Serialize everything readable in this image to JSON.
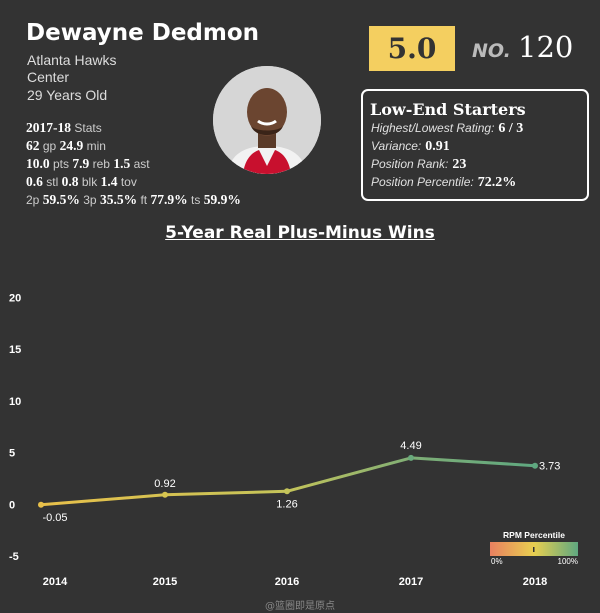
{
  "player": {
    "name": "Dewayne Dedmon",
    "team": "Atlanta Hawks",
    "position": "Center",
    "age": "29 Years Old"
  },
  "season_stats": {
    "season": "2017-18",
    "season_label": "Stats",
    "gp": "62",
    "gp_label": "gp",
    "min": "24.9",
    "min_label": "min",
    "pts": "10.0",
    "pts_label": "pts",
    "reb": "7.9",
    "reb_label": "reb",
    "ast": "1.5",
    "ast_label": "ast",
    "stl": "0.6",
    "stl_label": "stl",
    "blk": "0.8",
    "blk_label": "blk",
    "tov": "1.4",
    "tov_label": "tov",
    "fg2": "59.5%",
    "fg2_label": "2p",
    "fg3": "35.5%",
    "fg3_label": "3p",
    "ft": "77.9%",
    "ft_label": "ft",
    "ts": "59.9%",
    "ts_label": "ts"
  },
  "rating": {
    "value": "5.0",
    "rank_label": "NO.",
    "rank": "120",
    "rating_color": "#f4cf60"
  },
  "tier": {
    "title": "Low-End Starters",
    "highest_lowest_label": "Highest/Lowest Rating:",
    "highest_lowest_value": "6 / 3",
    "variance_label": "Variance:",
    "variance_value": "0.91",
    "position_rank_label": "Position Rank:",
    "position_rank_value": "23",
    "position_percentile_label": "Position Percentile:",
    "position_percentile_value": "72.2%"
  },
  "chart_data": {
    "type": "line",
    "title": "5-Year Real Plus-Minus Wins",
    "x": [
      "2014",
      "2015",
      "2016",
      "2017",
      "2018"
    ],
    "series": [
      {
        "values": [
          -0.05,
          0.92,
          1.26,
          4.49,
          3.73
        ]
      }
    ],
    "data_labels": [
      "-0.05",
      "0.92",
      "1.26",
      "4.49",
      "3.73"
    ],
    "yticks": [
      "-5",
      "0",
      "5",
      "10",
      "15",
      "20"
    ],
    "ylim": [
      -6,
      22
    ],
    "grid": false,
    "legend": {
      "title": "RPM Percentile",
      "min_label": "0%",
      "max_label": "100%",
      "colors": [
        "#e88060",
        "#e8cf50",
        "#5fa880"
      ],
      "placement": "bottom-right"
    }
  },
  "watermark": "@篮圈即是原点"
}
